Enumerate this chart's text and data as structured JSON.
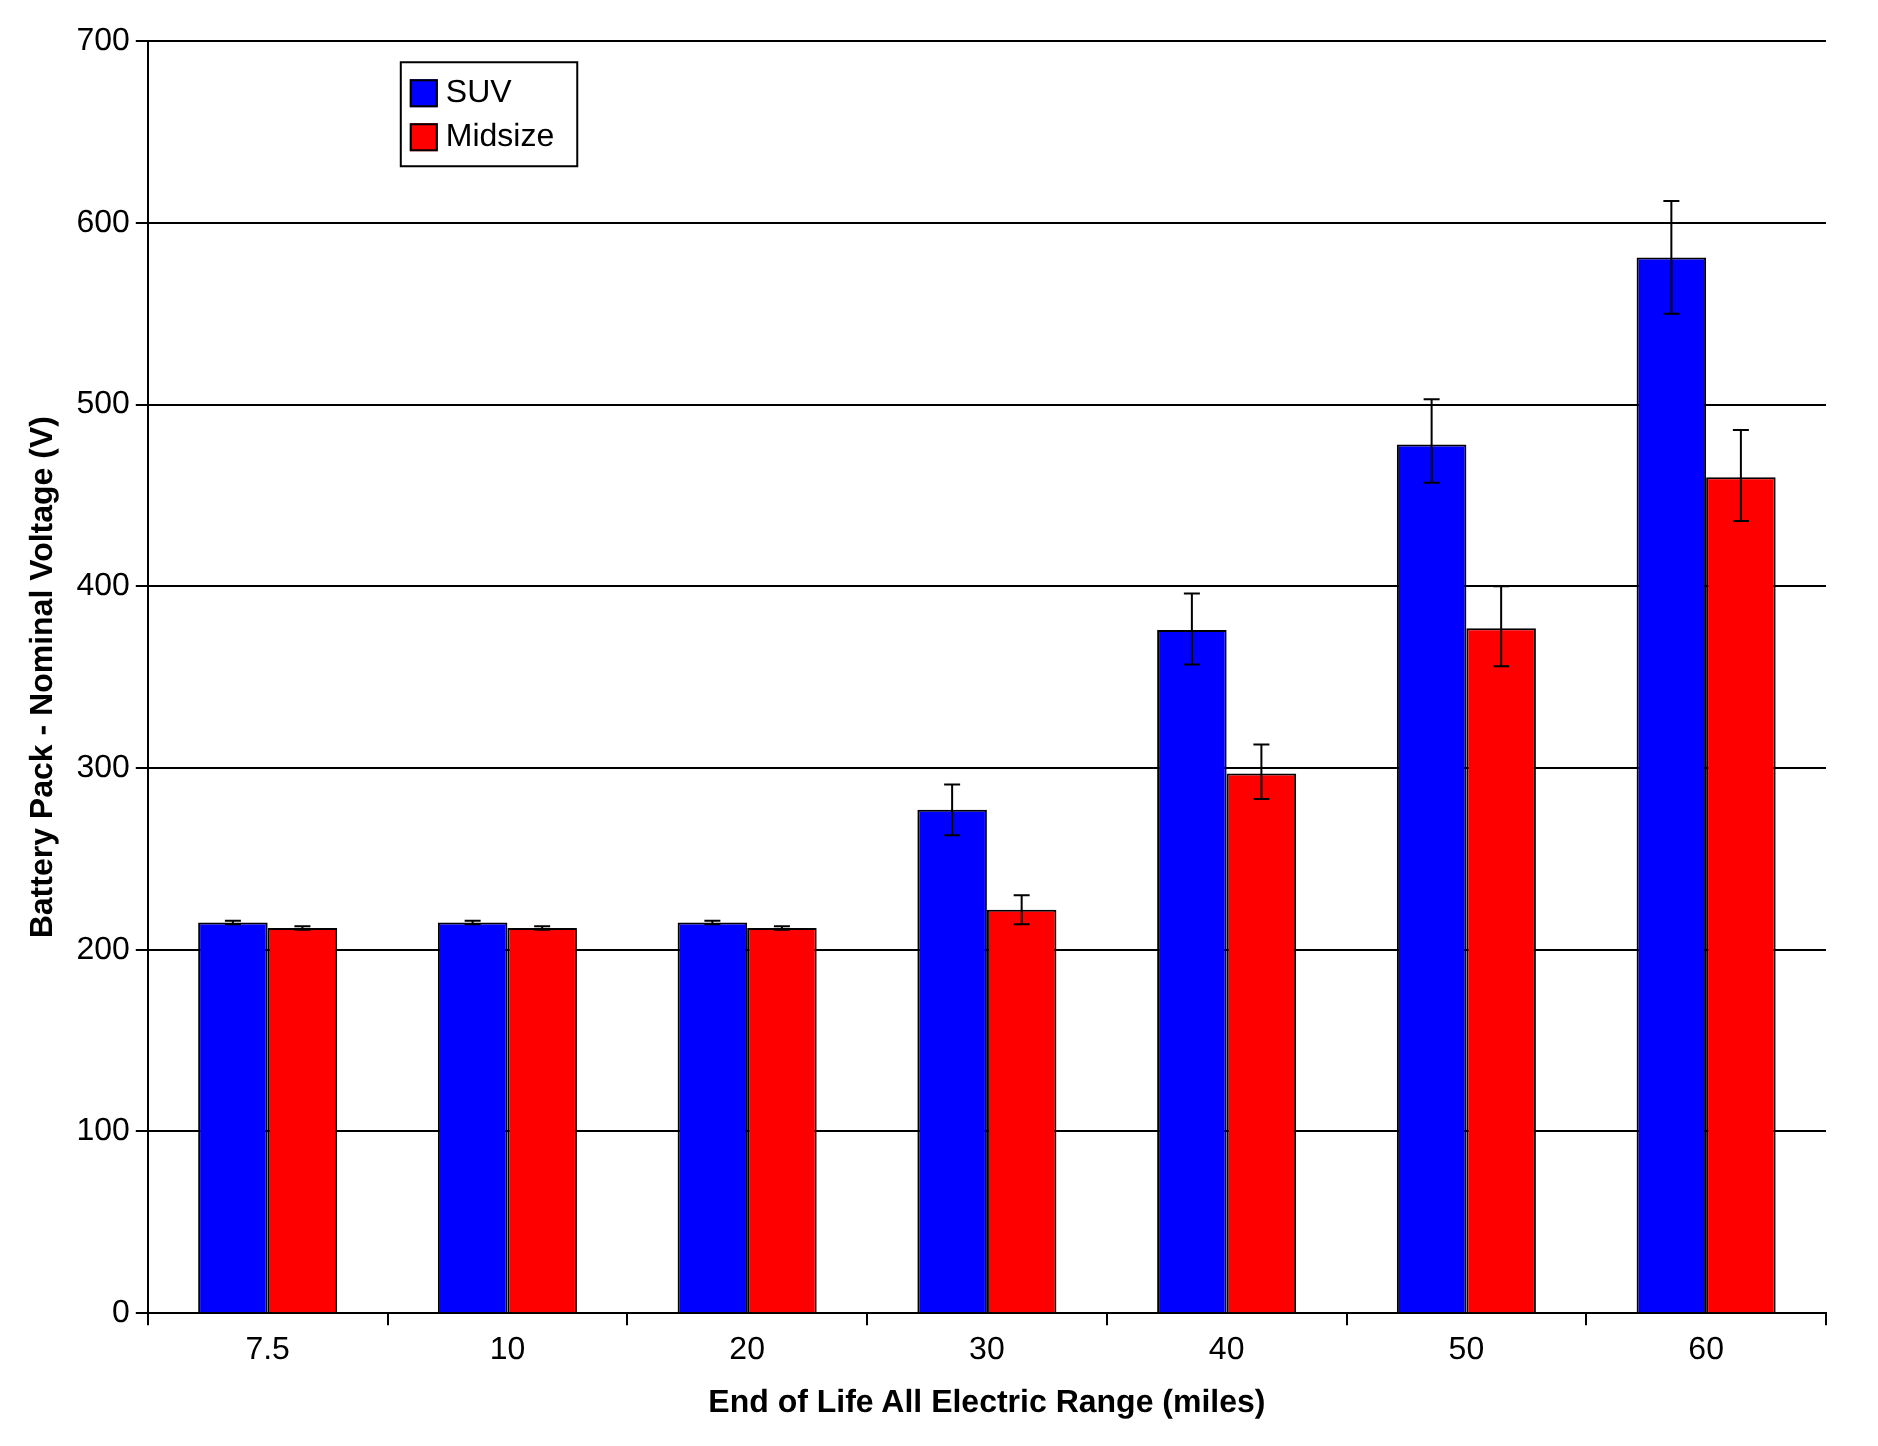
{
  "chart_data": {
    "type": "bar",
    "xlabel": "End of Life All Electric Range (miles)",
    "ylabel": "Battery Pack - Nominal Voltage (V)",
    "categories": [
      "7.5",
      "10",
      "20",
      "30",
      "40",
      "50",
      "60"
    ],
    "series": [
      {
        "name": "SUV",
        "color": "#0000ff",
        "values": [
          215,
          215,
          215,
          277,
          376,
          478,
          581
        ],
        "errors": [
          1,
          1,
          1,
          [
            263,
            291
          ],
          [
            357,
            396
          ],
          [
            457,
            503
          ],
          [
            550,
            612
          ]
        ]
      },
      {
        "name": "Midsize",
        "color": "#ff0000",
        "values": [
          212,
          212,
          212,
          222,
          297,
          377,
          460
        ],
        "errors": [
          1,
          1,
          1,
          [
            214,
            230
          ],
          [
            283,
            313
          ],
          [
            356,
            400
          ],
          [
            436,
            486
          ]
        ]
      }
    ],
    "ylim": [
      0,
      700
    ],
    "yticks": [
      0,
      100,
      200,
      300,
      400,
      500,
      600,
      700
    ],
    "grid": "y",
    "legend": "top left"
  }
}
